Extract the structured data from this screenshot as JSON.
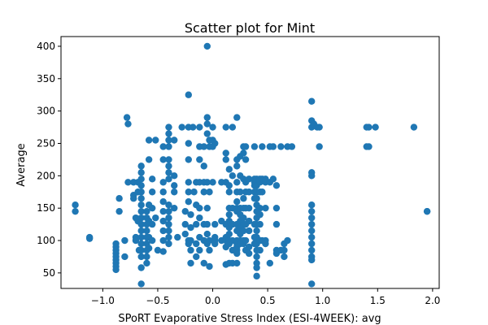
{
  "chart_data": {
    "type": "scatter",
    "title": "Scatter plot for Mint",
    "xlabel": "SPoRT Evaporative Stress Index (ESI-4WEEK): avg",
    "ylabel": "Average",
    "xlim": [
      -1.38,
      2.06
    ],
    "ylim": [
      26,
      415
    ],
    "xticks": [
      -1.0,
      -0.5,
      0.0,
      0.5,
      1.0,
      1.5,
      2.0
    ],
    "xtick_labels": [
      "−1.0",
      "−0.5",
      "0.0",
      "0.5",
      "1.0",
      "1.5",
      "2.0"
    ],
    "yticks": [
      50,
      100,
      150,
      200,
      250,
      300,
      350,
      400
    ],
    "ytick_labels": [
      "50",
      "100",
      "150",
      "200",
      "250",
      "300",
      "350",
      "400"
    ],
    "grid": false,
    "marker_color": "#1f77b4",
    "points": [
      [
        -1.25,
        155
      ],
      [
        -1.25,
        145
      ],
      [
        -1.12,
        105
      ],
      [
        -1.12,
        103
      ],
      [
        -0.88,
        95
      ],
      [
        -0.88,
        90
      ],
      [
        -0.88,
        85
      ],
      [
        -0.88,
        80
      ],
      [
        -0.88,
        75
      ],
      [
        -0.88,
        70
      ],
      [
        -0.88,
        65
      ],
      [
        -0.88,
        60
      ],
      [
        -0.88,
        55
      ],
      [
        -0.85,
        145
      ],
      [
        -0.85,
        165
      ],
      [
        -0.8,
        100
      ],
      [
        -0.8,
        75
      ],
      [
        -0.78,
        290
      ],
      [
        -0.77,
        280
      ],
      [
        -0.77,
        190
      ],
      [
        -0.72,
        190
      ],
      [
        -0.72,
        170
      ],
      [
        -0.72,
        165
      ],
      [
        -0.7,
        135
      ],
      [
        -0.7,
        105
      ],
      [
        -0.7,
        100
      ],
      [
        -0.68,
        190
      ],
      [
        -0.68,
        175
      ],
      [
        -0.68,
        130
      ],
      [
        -0.67,
        85
      ],
      [
        -0.65,
        215
      ],
      [
        -0.65,
        205
      ],
      [
        -0.65,
        195
      ],
      [
        -0.65,
        185
      ],
      [
        -0.65,
        175
      ],
      [
        -0.65,
        165
      ],
      [
        -0.65,
        155
      ],
      [
        -0.65,
        145
      ],
      [
        -0.65,
        135
      ],
      [
        -0.65,
        125
      ],
      [
        -0.65,
        115
      ],
      [
        -0.65,
        105
      ],
      [
        -0.65,
        95
      ],
      [
        -0.65,
        85
      ],
      [
        -0.65,
        75
      ],
      [
        -0.65,
        58
      ],
      [
        -0.65,
        33
      ],
      [
        -0.6,
        145
      ],
      [
        -0.6,
        135
      ],
      [
        -0.6,
        125
      ],
      [
        -0.6,
        115
      ],
      [
        -0.6,
        105
      ],
      [
        -0.6,
        95
      ],
      [
        -0.6,
        85
      ],
      [
        -0.6,
        75
      ],
      [
        -0.6,
        65
      ],
      [
        -0.58,
        255
      ],
      [
        -0.58,
        225
      ],
      [
        -0.58,
        155
      ],
      [
        -0.58,
        130
      ],
      [
        -0.58,
        105
      ],
      [
        -0.58,
        88
      ],
      [
        -0.55,
        195
      ],
      [
        -0.55,
        175
      ],
      [
        -0.55,
        150
      ],
      [
        -0.55,
        125
      ],
      [
        -0.55,
        100
      ],
      [
        -0.52,
        255
      ],
      [
        -0.52,
        135
      ],
      [
        -0.5,
        85
      ],
      [
        -0.45,
        245
      ],
      [
        -0.45,
        225
      ],
      [
        -0.45,
        190
      ],
      [
        -0.45,
        175
      ],
      [
        -0.45,
        160
      ],
      [
        -0.45,
        145
      ],
      [
        -0.45,
        130
      ],
      [
        -0.45,
        115
      ],
      [
        -0.45,
        100
      ],
      [
        -0.45,
        83
      ],
      [
        -0.4,
        275
      ],
      [
        -0.4,
        265
      ],
      [
        -0.4,
        255
      ],
      [
        -0.4,
        245
      ],
      [
        -0.4,
        225
      ],
      [
        -0.4,
        215
      ],
      [
        -0.4,
        205
      ],
      [
        -0.4,
        195
      ],
      [
        -0.4,
        155
      ],
      [
        -0.4,
        145
      ],
      [
        -0.4,
        135
      ],
      [
        -0.4,
        125
      ],
      [
        -0.4,
        115
      ],
      [
        -0.4,
        105
      ],
      [
        -0.4,
        95
      ],
      [
        -0.35,
        255
      ],
      [
        -0.35,
        200
      ],
      [
        -0.35,
        185
      ],
      [
        -0.35,
        175
      ],
      [
        -0.35,
        150
      ],
      [
        -0.32,
        105
      ],
      [
        -0.28,
        275
      ],
      [
        -0.25,
        145
      ],
      [
        -0.25,
        125
      ],
      [
        -0.25,
        110
      ],
      [
        -0.22,
        325
      ],
      [
        -0.22,
        275
      ],
      [
        -0.22,
        250
      ],
      [
        -0.22,
        225
      ],
      [
        -0.22,
        190
      ],
      [
        -0.22,
        175
      ],
      [
        -0.22,
        160
      ],
      [
        -0.22,
        100
      ],
      [
        -0.22,
        95
      ],
      [
        -0.2,
        140
      ],
      [
        -0.2,
        120
      ],
      [
        -0.2,
        100
      ],
      [
        -0.2,
        85
      ],
      [
        -0.2,
        65
      ],
      [
        -0.18,
        275
      ],
      [
        -0.17,
        175
      ],
      [
        -0.15,
        190
      ],
      [
        -0.15,
        155
      ],
      [
        -0.15,
        125
      ],
      [
        -0.15,
        95
      ],
      [
        -0.15,
        75
      ],
      [
        -0.12,
        275
      ],
      [
        -0.12,
        245
      ],
      [
        -0.12,
        225
      ],
      [
        -0.12,
        190
      ],
      [
        -0.12,
        150
      ],
      [
        -0.12,
        135
      ],
      [
        -0.12,
        105
      ],
      [
        -0.12,
        85
      ],
      [
        -0.08,
        245
      ],
      [
        -0.08,
        215
      ],
      [
        -0.08,
        190
      ],
      [
        -0.08,
        175
      ],
      [
        -0.08,
        125
      ],
      [
        -0.08,
        100
      ],
      [
        -0.08,
        65
      ],
      [
        -0.05,
        400
      ],
      [
        -0.05,
        290
      ],
      [
        -0.05,
        280
      ],
      [
        -0.05,
        265
      ],
      [
        -0.05,
        190
      ],
      [
        -0.05,
        150
      ],
      [
        -0.05,
        125
      ],
      [
        -0.05,
        110
      ],
      [
        -0.05,
        95
      ],
      [
        -0.03,
        255
      ],
      [
        -0.03,
        245
      ],
      [
        -0.03,
        175
      ],
      [
        -0.03,
        100
      ],
      [
        -0.03,
        85
      ],
      [
        -0.03,
        60
      ],
      [
        0.0,
        275
      ],
      [
        0.0,
        255
      ],
      [
        0.0,
        245
      ],
      [
        0.0,
        190
      ],
      [
        0.02,
        250
      ],
      [
        0.02,
        125
      ],
      [
        0.02,
        105
      ],
      [
        0.02,
        100
      ],
      [
        0.02,
        95
      ],
      [
        0.08,
        190
      ],
      [
        0.08,
        130
      ],
      [
        0.08,
        100
      ],
      [
        0.12,
        275
      ],
      [
        0.12,
        235
      ],
      [
        0.12,
        225
      ],
      [
        0.12,
        190
      ],
      [
        0.12,
        125
      ],
      [
        0.12,
        105
      ],
      [
        0.12,
        100
      ],
      [
        0.12,
        90
      ],
      [
        0.12,
        63
      ],
      [
        0.15,
        210
      ],
      [
        0.15,
        185
      ],
      [
        0.15,
        175
      ],
      [
        0.15,
        150
      ],
      [
        0.15,
        140
      ],
      [
        0.15,
        130
      ],
      [
        0.15,
        120
      ],
      [
        0.15,
        110
      ],
      [
        0.15,
        100
      ],
      [
        0.15,
        95
      ],
      [
        0.15,
        65
      ],
      [
        0.18,
        275
      ],
      [
        0.18,
        200
      ],
      [
        0.18,
        150
      ],
      [
        0.18,
        125
      ],
      [
        0.18,
        100
      ],
      [
        0.18,
        85
      ],
      [
        0.18,
        65
      ],
      [
        0.22,
        290
      ],
      [
        0.22,
        225
      ],
      [
        0.22,
        215
      ],
      [
        0.22,
        190
      ],
      [
        0.22,
        175
      ],
      [
        0.22,
        160
      ],
      [
        0.22,
        150
      ],
      [
        0.22,
        145
      ],
      [
        0.22,
        125
      ],
      [
        0.22,
        115
      ],
      [
        0.22,
        100
      ],
      [
        0.22,
        95
      ],
      [
        0.22,
        90
      ],
      [
        0.22,
        85
      ],
      [
        0.22,
        80
      ],
      [
        0.22,
        65
      ],
      [
        0.25,
        230
      ],
      [
        0.25,
        200
      ],
      [
        0.25,
        175
      ],
      [
        0.25,
        150
      ],
      [
        0.25,
        140
      ],
      [
        0.25,
        130
      ],
      [
        0.25,
        120
      ],
      [
        0.25,
        110
      ],
      [
        0.25,
        100
      ],
      [
        0.25,
        95
      ],
      [
        0.28,
        245
      ],
      [
        0.28,
        235
      ],
      [
        0.28,
        195
      ],
      [
        0.28,
        165
      ],
      [
        0.28,
        150
      ],
      [
        0.28,
        135
      ],
      [
        0.28,
        125
      ],
      [
        0.28,
        115
      ],
      [
        0.28,
        100
      ],
      [
        0.28,
        95
      ],
      [
        0.3,
        245
      ],
      [
        0.3,
        225
      ],
      [
        0.3,
        190
      ],
      [
        0.3,
        175
      ],
      [
        0.3,
        150
      ],
      [
        0.3,
        125
      ],
      [
        0.3,
        100
      ],
      [
        0.3,
        85
      ],
      [
        0.33,
        195
      ],
      [
        0.33,
        175
      ],
      [
        0.33,
        150
      ],
      [
        0.33,
        130
      ],
      [
        0.33,
        115
      ],
      [
        0.33,
        90
      ],
      [
        0.33,
        80
      ],
      [
        0.38,
        245
      ],
      [
        0.38,
        195
      ],
      [
        0.38,
        190
      ],
      [
        0.38,
        185
      ],
      [
        0.38,
        175
      ],
      [
        0.38,
        165
      ],
      [
        0.38,
        125
      ],
      [
        0.38,
        105
      ],
      [
        0.38,
        95
      ],
      [
        0.4,
        195
      ],
      [
        0.4,
        190
      ],
      [
        0.4,
        185
      ],
      [
        0.4,
        175
      ],
      [
        0.4,
        165
      ],
      [
        0.4,
        155
      ],
      [
        0.4,
        145
      ],
      [
        0.4,
        135
      ],
      [
        0.4,
        125
      ],
      [
        0.4,
        115
      ],
      [
        0.4,
        105
      ],
      [
        0.4,
        95
      ],
      [
        0.4,
        85
      ],
      [
        0.4,
        75
      ],
      [
        0.4,
        65
      ],
      [
        0.4,
        58
      ],
      [
        0.4,
        45
      ],
      [
        0.43,
        195
      ],
      [
        0.43,
        190
      ],
      [
        0.43,
        175
      ],
      [
        0.43,
        150
      ],
      [
        0.43,
        140
      ],
      [
        0.43,
        125
      ],
      [
        0.43,
        100
      ],
      [
        0.43,
        85
      ],
      [
        0.45,
        245
      ],
      [
        0.45,
        195
      ],
      [
        0.45,
        175
      ],
      [
        0.45,
        100
      ],
      [
        0.48,
        195
      ],
      [
        0.48,
        190
      ],
      [
        0.48,
        150
      ],
      [
        0.48,
        100
      ],
      [
        0.48,
        95
      ],
      [
        0.52,
        245
      ],
      [
        0.52,
        190
      ],
      [
        0.52,
        65
      ],
      [
        0.55,
        245
      ],
      [
        0.55,
        195
      ],
      [
        0.58,
        185
      ],
      [
        0.58,
        150
      ],
      [
        0.58,
        125
      ],
      [
        0.58,
        85
      ],
      [
        0.58,
        80
      ],
      [
        0.62,
        245
      ],
      [
        0.62,
        85
      ],
      [
        0.65,
        85
      ],
      [
        0.65,
        75
      ],
      [
        0.65,
        95
      ],
      [
        0.68,
        245
      ],
      [
        0.68,
        100
      ],
      [
        0.72,
        245
      ],
      [
        0.9,
        315
      ],
      [
        0.9,
        285
      ],
      [
        0.9,
        275
      ],
      [
        0.9,
        205
      ],
      [
        0.9,
        200
      ],
      [
        0.9,
        155
      ],
      [
        0.9,
        145
      ],
      [
        0.9,
        135
      ],
      [
        0.9,
        125
      ],
      [
        0.9,
        115
      ],
      [
        0.9,
        105
      ],
      [
        0.9,
        95
      ],
      [
        0.9,
        85
      ],
      [
        0.9,
        75
      ],
      [
        0.9,
        70
      ],
      [
        0.9,
        33
      ],
      [
        0.92,
        280
      ],
      [
        0.95,
        275
      ],
      [
        0.97,
        245
      ],
      [
        0.97,
        275
      ],
      [
        1.4,
        275
      ],
      [
        1.4,
        245
      ],
      [
        1.42,
        275
      ],
      [
        1.42,
        245
      ],
      [
        1.48,
        275
      ],
      [
        1.83,
        275
      ],
      [
        1.95,
        145
      ],
      [
        1.95,
        145
      ]
    ]
  }
}
